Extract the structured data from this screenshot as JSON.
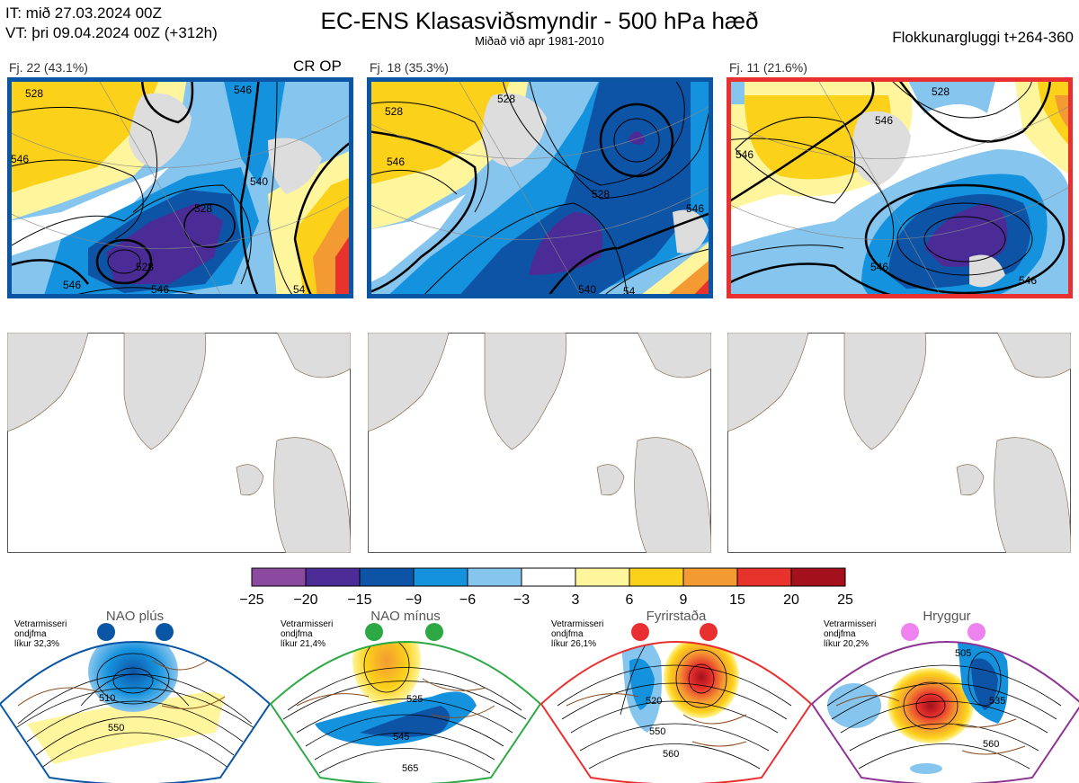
{
  "header": {
    "it_line": "IT: mið 27.03.2024 00Z",
    "vt_line": "VT: þri 09.04.2024 00Z  (+312h)",
    "title": "EC-ENS Klasasviðsmyndir - 500 hPa hæð",
    "subtitle": "Miðað við apr 1981-2010",
    "window": "Flokkunargluggi t+264-360"
  },
  "clusters": [
    {
      "label": "Fj. 22 (43.1%)",
      "tag": "CR OP",
      "border": "#0a56a4"
    },
    {
      "label": "Fj. 18 (35.3%)",
      "tag": "",
      "border": "#0a56a4"
    },
    {
      "label": "Fj. 11 (21.6%)",
      "tag": "",
      "border": "#e83030"
    }
  ],
  "contour_labels": {
    "c1": [
      "528",
      "546",
      "540",
      "528",
      "546",
      "546",
      "528",
      "54",
      "546"
    ],
    "c2": [
      "528",
      "546",
      "528",
      "546",
      "528",
      "54",
      "540"
    ],
    "c3": [
      "528",
      "546",
      "546",
      "546",
      "546"
    ]
  },
  "colorbar": {
    "ticks": [
      "−25",
      "−20",
      "−15",
      "−9",
      "−6",
      "−3",
      "3",
      "6",
      "9",
      "15",
      "20",
      "25"
    ],
    "colors": [
      "#8b4aa0",
      "#4b2c97",
      "#0d54a6",
      "#1592dd",
      "#86c5ee",
      "#ffffff",
      "#fff59c",
      "#fcd11a",
      "#f49a33",
      "#e8322c",
      "#a4101c"
    ]
  },
  "regimes": [
    {
      "name": "NAO plús",
      "note_l1": "Vetrarmisseri",
      "note_l2": "ondjfma",
      "note_l3": "líkur 32,3%",
      "color": "#0a56a4",
      "contours": [
        "510",
        "550"
      ]
    },
    {
      "name": "NAO mínus",
      "note_l1": "Vetrarmisseri",
      "note_l2": "ondjfma",
      "note_l3": "líkur 21,4%",
      "color": "#2ca845",
      "contours": [
        "525",
        "545",
        "565"
      ]
    },
    {
      "name": "Fyrirstaða",
      "note_l1": "Vetrarmisseri",
      "note_l2": "ondjfma",
      "note_l3": "líkur 26,1%",
      "color": "#e83030",
      "contours": [
        "520",
        "550",
        "560"
      ]
    },
    {
      "name": "Hryggur",
      "note_l1": "Vetrarmisseri",
      "note_l2": "ondjfma",
      "note_l3": "líkur 20,2%",
      "color": "#8e3494",
      "contours": [
        "505",
        "535",
        "560"
      ]
    }
  ]
}
